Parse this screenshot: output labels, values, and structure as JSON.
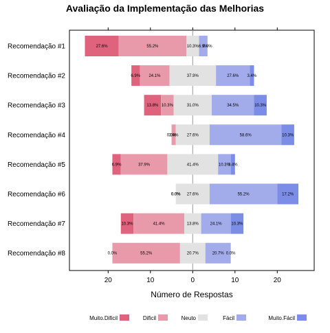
{
  "chart_data": {
    "type": "bar",
    "orientation": "horizontal",
    "stacking": "diverging",
    "title": "Avaliação da Implementação das Melhorias",
    "xlabel": "Número de Respostas",
    "ylabel": "",
    "xlim": [
      -29,
      29
    ],
    "xticks": [
      -20,
      -10,
      0,
      10,
      20
    ],
    "xtick_labels": [
      "20",
      "10",
      "0",
      "10",
      "20"
    ],
    "categories": [
      "Recomendação #1",
      "Recomendação #2",
      "Recomendação #3",
      "Recomendação #4",
      "Recomendação #5",
      "Recomendação #6",
      "Recomendação #7",
      "Recomendação #8"
    ],
    "series": [
      {
        "name": "Muito.Dificil",
        "color": "#e0637e",
        "values": [
          8,
          2,
          4,
          0,
          2,
          0,
          3,
          0
        ]
      },
      {
        "name": "Dificil",
        "color": "#e99aaa",
        "values": [
          16,
          7,
          3,
          1,
          11,
          0,
          12,
          16
        ]
      },
      {
        "name": "Neuto",
        "color": "#e2e2e2",
        "values": [
          3,
          11,
          9,
          8,
          12,
          8,
          4,
          6
        ]
      },
      {
        "name": "Fácil",
        "color": "#a3acea",
        "values": [
          2,
          8,
          10,
          17,
          3,
          16,
          7,
          6
        ]
      },
      {
        "name": "Muito.Fácil",
        "color": "#7b8de6",
        "values": [
          0,
          1,
          3,
          3,
          1,
          5,
          3,
          0
        ]
      }
    ],
    "data_labels": [
      [
        "27.6%",
        "55.2%",
        "10.3%",
        "6.9%",
        "0.0%"
      ],
      [
        "6.9%",
        "24.1%",
        "37.9%",
        "27.6%",
        "3.4%"
      ],
      [
        "13.8%",
        "10.3%",
        "31.0%",
        "34.5%",
        "10.3%"
      ],
      [
        "0.0%",
        "3.4%",
        "27.6%",
        "58.6%",
        "10.3%"
      ],
      [
        "6.9%",
        "37.9%",
        "41.4%",
        "10.3%",
        "3.4%"
      ],
      [
        "0.0%",
        "0.0%",
        "27.6%",
        "55.2%",
        "17.2%"
      ],
      [
        "10.3%",
        "41.4%",
        "13.8%",
        "24.1%",
        "10.3%"
      ],
      [
        "0.0%",
        "55.2%",
        "20.7%",
        "20.7%",
        "0.0%"
      ]
    ],
    "grid": false,
    "legend_position": "bottom"
  }
}
